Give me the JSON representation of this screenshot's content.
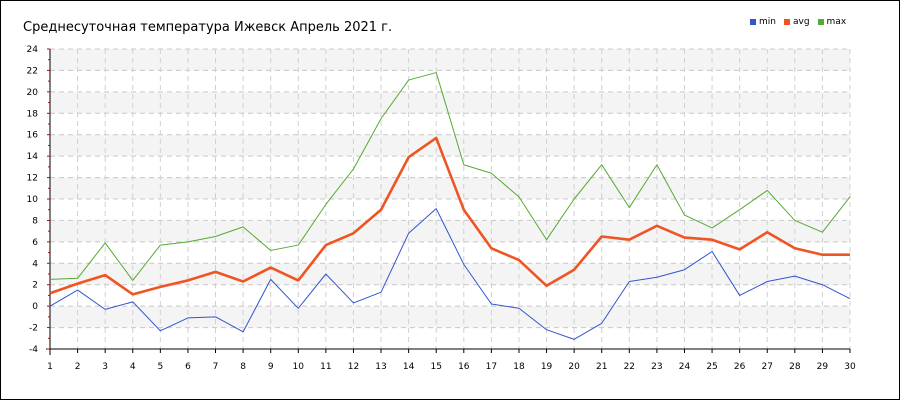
{
  "chart_data": {
    "type": "line",
    "title": "Среднесуточная температура Ижевск  Апрель 2021 г.",
    "xlabel": "",
    "ylabel": "",
    "x": [
      1,
      2,
      3,
      4,
      5,
      6,
      7,
      8,
      9,
      10,
      11,
      12,
      13,
      14,
      15,
      16,
      17,
      18,
      19,
      20,
      21,
      22,
      23,
      24,
      25,
      26,
      27,
      28,
      29,
      30
    ],
    "xlim": [
      1,
      30
    ],
    "ylim": [
      -4,
      24
    ],
    "yticks": [
      -4,
      -2,
      0,
      2,
      4,
      6,
      8,
      10,
      12,
      14,
      16,
      18,
      20,
      22,
      24
    ],
    "grid": true,
    "legend_position": "top-right",
    "series": [
      {
        "name": "min",
        "color": "#3355cc",
        "values": [
          0.0,
          1.5,
          -0.3,
          0.4,
          -2.3,
          -1.1,
          -1.0,
          -2.4,
          2.5,
          -0.2,
          3.0,
          0.3,
          1.3,
          6.8,
          9.1,
          3.9,
          0.2,
          -0.2,
          -2.2,
          -3.1,
          -1.6,
          2.3,
          2.7,
          3.4,
          5.1,
          1.0,
          2.3,
          2.8,
          2.0,
          0.7
        ]
      },
      {
        "name": "avg",
        "color": "#ee5522",
        "values": [
          1.2,
          2.1,
          2.9,
          1.1,
          1.8,
          2.4,
          3.2,
          2.3,
          3.6,
          2.4,
          5.7,
          6.8,
          9.0,
          13.9,
          15.7,
          9.0,
          5.4,
          4.3,
          1.9,
          3.4,
          6.5,
          6.2,
          7.5,
          6.4,
          6.2,
          5.3,
          6.9,
          5.4,
          4.8,
          4.8
        ]
      },
      {
        "name": "max",
        "color": "#55aa33",
        "values": [
          2.5,
          2.6,
          5.9,
          2.4,
          5.7,
          6.0,
          6.5,
          7.4,
          5.2,
          5.7,
          9.5,
          12.8,
          17.5,
          21.1,
          21.8,
          13.2,
          12.4,
          10.2,
          6.2,
          10.0,
          13.2,
          9.2,
          13.2,
          8.5,
          7.3,
          9.0,
          10.8,
          8.0,
          6.9,
          10.2
        ]
      }
    ]
  }
}
